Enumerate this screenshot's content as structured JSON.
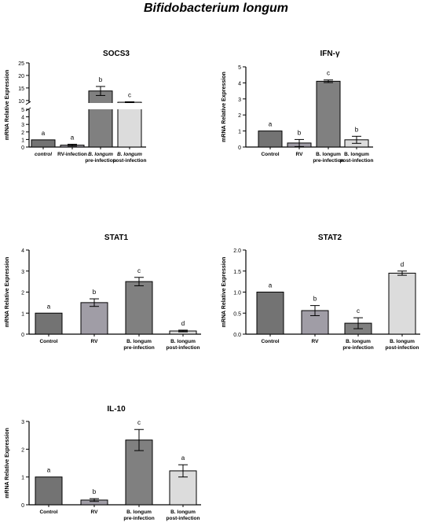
{
  "figure_title": "Bifidobacterium longum",
  "chart_data": [
    {
      "type": "bar",
      "title": "SOCS3",
      "ylabel": "mRNA Relative Expression",
      "categories": [
        [
          "control"
        ],
        [
          "RV-infection"
        ],
        [
          "B. longum",
          "pre-infection"
        ],
        [
          "B. longum",
          "post-infection"
        ]
      ],
      "category_style": [
        "italic",
        "normal",
        "italic",
        "italic"
      ],
      "values": [
        0.95,
        0.25,
        13.8,
        9.3
      ],
      "errors": [
        0,
        0.12,
        1.8,
        0.2
      ],
      "letters": [
        "a",
        "a",
        "b",
        "c"
      ],
      "colors": [
        "#737373",
        "#a09da6",
        "#808080",
        "#dcdcdc"
      ],
      "broken_axis": {
        "lower": [
          0,
          5
        ],
        "upper": [
          9,
          25
        ],
        "lower_ticks": [
          0,
          1,
          2,
          3,
          4,
          5
        ],
        "upper_ticks": [
          10,
          15,
          20,
          25
        ]
      },
      "grid": false
    },
    {
      "type": "bar",
      "title": "IFN-γ",
      "ylabel": "mRNA Relative Expression",
      "categories": [
        [
          "Control"
        ],
        [
          "RV"
        ],
        [
          "B. longum",
          "pre-infection"
        ],
        [
          "B. longum",
          "post-infection"
        ]
      ],
      "values": [
        1.0,
        0.25,
        4.1,
        0.45
      ],
      "errors": [
        0,
        0.22,
        0.08,
        0.22
      ],
      "letters": [
        "a",
        "b",
        "c",
        "b"
      ],
      "colors": [
        "#737373",
        "#a09da6",
        "#808080",
        "#dcdcdc"
      ],
      "ylim": [
        0,
        5
      ],
      "yticks": [
        0,
        1,
        2,
        3,
        4,
        5
      ],
      "grid": false
    },
    {
      "type": "bar",
      "title": "STAT1",
      "ylabel": "mRNA Relative Expression",
      "categories": [
        [
          "Control"
        ],
        [
          "RV"
        ],
        [
          "B. longum",
          "pre-infection"
        ],
        [
          "B. longum",
          "post-infection"
        ]
      ],
      "values": [
        1.0,
        1.5,
        2.5,
        0.15
      ],
      "errors": [
        0,
        0.18,
        0.2,
        0.04
      ],
      "letters": [
        "a",
        "b",
        "c",
        "d"
      ],
      "colors": [
        "#737373",
        "#a09da6",
        "#808080",
        "#dcdcdc"
      ],
      "ylim": [
        0,
        4
      ],
      "yticks": [
        0,
        1,
        2,
        3,
        4
      ],
      "grid": false
    },
    {
      "type": "bar",
      "title": "STAT2",
      "ylabel": "mRNA Relative Expression",
      "categories": [
        [
          "Control"
        ],
        [
          "RV"
        ],
        [
          "B. longum",
          "pre-infection"
        ],
        [
          "B. longum",
          "post-infection"
        ]
      ],
      "values": [
        1.0,
        0.56,
        0.26,
        1.45
      ],
      "errors": [
        0,
        0.12,
        0.13,
        0.05
      ],
      "letters": [
        "a",
        "b",
        "c",
        "d"
      ],
      "colors": [
        "#737373",
        "#a09da6",
        "#808080",
        "#dcdcdc"
      ],
      "ylim": [
        0,
        2.0
      ],
      "yticks": [
        "0.0",
        "0.5",
        "1.0",
        "1.5",
        "2.0"
      ],
      "grid": false
    },
    {
      "type": "bar",
      "title": "IL-10",
      "ylabel": "mRNA Relative Expression",
      "categories": [
        [
          "Control"
        ],
        [
          "RV"
        ],
        [
          "B. longum",
          "pre-infection"
        ],
        [
          "B. longum",
          "post-infection"
        ]
      ],
      "values": [
        1.0,
        0.17,
        2.33,
        1.22
      ],
      "errors": [
        0,
        0.05,
        0.38,
        0.22
      ],
      "letters": [
        "a",
        "b",
        "c",
        "a"
      ],
      "colors": [
        "#737373",
        "#a09da6",
        "#808080",
        "#dcdcdc"
      ],
      "ylim": [
        0,
        3
      ],
      "yticks": [
        0,
        1,
        2,
        3
      ],
      "grid": false
    }
  ]
}
